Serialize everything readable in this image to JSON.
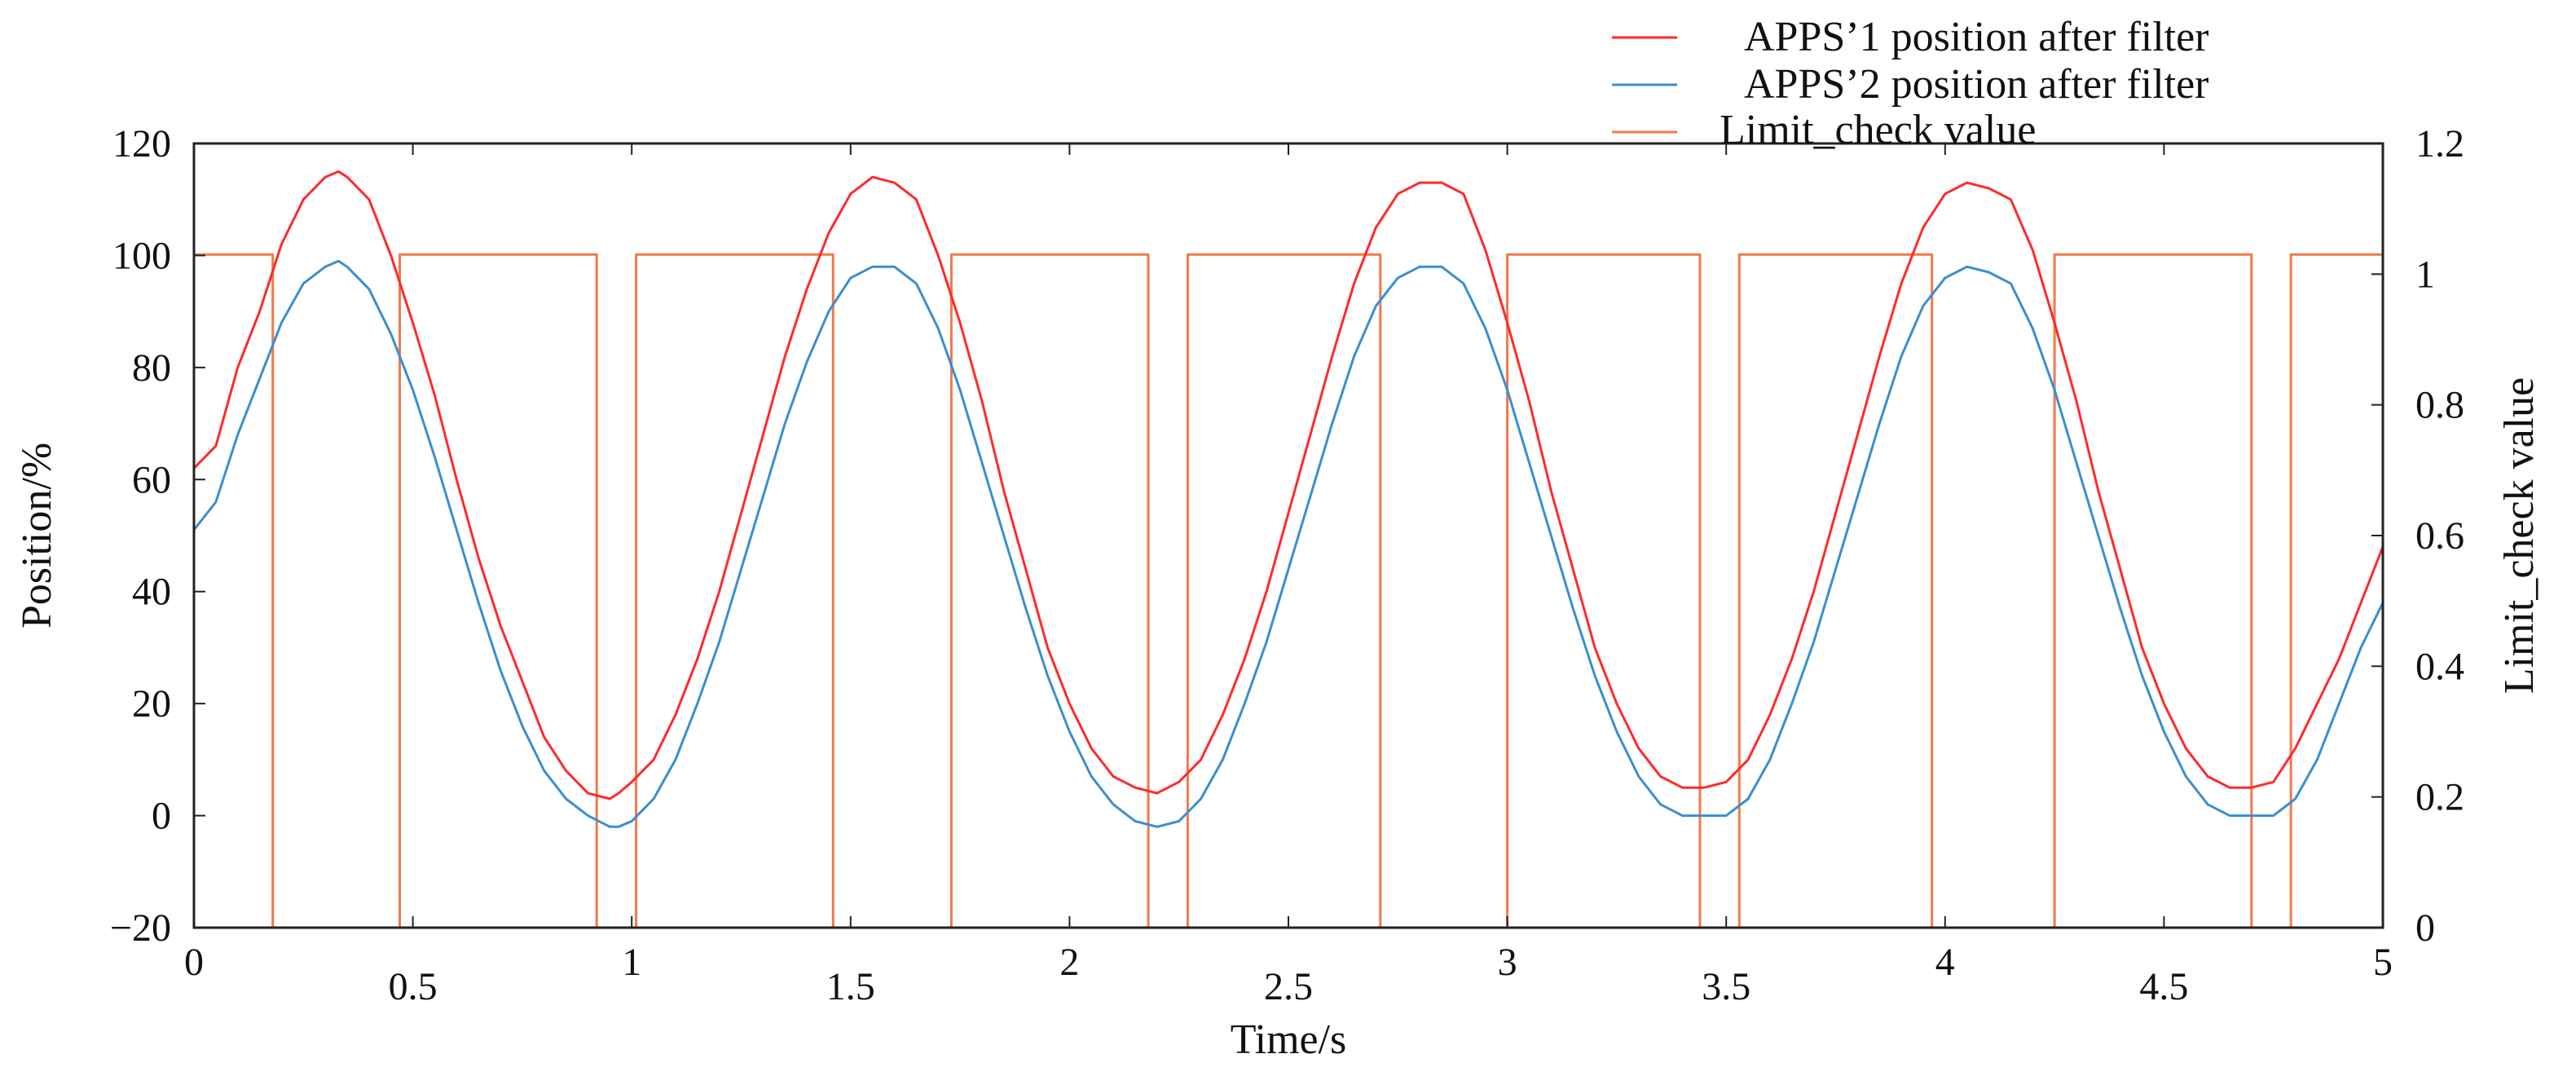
{
  "chart_data": {
    "type": "line",
    "xlabel": "Time/s",
    "ylabel_left": "Position/%",
    "ylabel_right": "Limit_check value",
    "xlim": [
      0,
      5
    ],
    "ylim_left": [
      -20,
      120
    ],
    "ylim_right": [
      0,
      1.2
    ],
    "x_ticks": [
      "0",
      "0.5",
      "1",
      "1.5",
      "2",
      "2.5",
      "3",
      "3.5",
      "4",
      "4.5",
      "5"
    ],
    "y_left_ticks": [
      "120",
      "100",
      "80",
      "60",
      "40",
      "20",
      "0",
      "−20"
    ],
    "y_right_ticks": [
      "1.2",
      "1",
      "0.8",
      "0.6",
      "0.4",
      "0.2",
      "0"
    ],
    "grid": false,
    "legend_position": "top-right",
    "series": [
      {
        "name": "APPS’1 position after filter",
        "axis": "left",
        "color": "#ff2a2a",
        "x": [
          0,
          0.05,
          0.1,
          0.15,
          0.2,
          0.25,
          0.3,
          0.33,
          0.35,
          0.4,
          0.45,
          0.5,
          0.55,
          0.6,
          0.65,
          0.7,
          0.75,
          0.8,
          0.85,
          0.9,
          0.95,
          0.97,
          1.0,
          1.05,
          1.1,
          1.15,
          1.2,
          1.25,
          1.3,
          1.35,
          1.4,
          1.45,
          1.5,
          1.55,
          1.6,
          1.65,
          1.7,
          1.75,
          1.8,
          1.85,
          1.9,
          1.95,
          2.0,
          2.05,
          2.1,
          2.15,
          2.2,
          2.25,
          2.3,
          2.35,
          2.4,
          2.45,
          2.5,
          2.55,
          2.6,
          2.65,
          2.7,
          2.75,
          2.8,
          2.85,
          2.9,
          2.95,
          3.0,
          3.05,
          3.1,
          3.15,
          3.2,
          3.25,
          3.3,
          3.35,
          3.4,
          3.45,
          3.5,
          3.55,
          3.6,
          3.65,
          3.7,
          3.75,
          3.8,
          3.85,
          3.9,
          3.95,
          4.0,
          4.05,
          4.1,
          4.15,
          4.2,
          4.25,
          4.3,
          4.35,
          4.4,
          4.45,
          4.5,
          4.55,
          4.6,
          4.65,
          4.7,
          4.75,
          4.8,
          4.85,
          4.9,
          4.95,
          5.0
        ],
        "values": [
          62,
          66,
          80,
          90,
          102,
          110,
          114,
          115,
          114,
          110,
          100,
          88,
          75,
          60,
          46,
          34,
          24,
          14,
          8,
          4,
          3,
          4,
          6,
          10,
          18,
          28,
          40,
          54,
          68,
          82,
          94,
          104,
          111,
          114,
          113,
          110,
          100,
          88,
          74,
          58,
          44,
          30,
          20,
          12,
          7,
          5,
          4,
          6,
          10,
          18,
          28,
          40,
          54,
          68,
          82,
          95,
          105,
          111,
          113,
          113,
          111,
          101,
          88,
          74,
          58,
          44,
          30,
          20,
          12,
          7,
          5,
          5,
          6,
          10,
          18,
          28,
          40,
          54,
          68,
          82,
          95,
          105,
          111,
          113,
          112,
          110,
          101,
          88,
          74,
          58,
          44,
          30,
          20,
          12,
          7,
          5,
          5,
          6,
          12,
          20,
          28,
          38,
          48
        ]
      },
      {
        "name": "APPS’2 position after filter",
        "axis": "left",
        "color": "#3a8fd0",
        "x": [
          0,
          0.05,
          0.1,
          0.15,
          0.2,
          0.25,
          0.3,
          0.33,
          0.35,
          0.4,
          0.45,
          0.5,
          0.55,
          0.6,
          0.65,
          0.7,
          0.75,
          0.8,
          0.85,
          0.9,
          0.95,
          0.97,
          1.0,
          1.05,
          1.1,
          1.15,
          1.2,
          1.25,
          1.3,
          1.35,
          1.4,
          1.45,
          1.5,
          1.55,
          1.6,
          1.65,
          1.7,
          1.75,
          1.8,
          1.85,
          1.9,
          1.95,
          2.0,
          2.05,
          2.1,
          2.15,
          2.2,
          2.25,
          2.3,
          2.35,
          2.4,
          2.45,
          2.5,
          2.55,
          2.6,
          2.65,
          2.7,
          2.75,
          2.8,
          2.85,
          2.9,
          2.95,
          3.0,
          3.05,
          3.1,
          3.15,
          3.2,
          3.25,
          3.3,
          3.35,
          3.4,
          3.45,
          3.5,
          3.55,
          3.6,
          3.65,
          3.7,
          3.75,
          3.8,
          3.85,
          3.9,
          3.95,
          4.0,
          4.05,
          4.1,
          4.15,
          4.2,
          4.25,
          4.3,
          4.35,
          4.4,
          4.45,
          4.5,
          4.55,
          4.6,
          4.65,
          4.7,
          4.75,
          4.8,
          4.85,
          4.9,
          4.95,
          5.0
        ],
        "values": [
          51,
          56,
          68,
          78,
          88,
          95,
          98,
          99,
          98,
          94,
          86,
          76,
          64,
          51,
          38,
          26,
          16,
          8,
          3,
          0,
          -2,
          -2,
          -1,
          3,
          10,
          20,
          31,
          44,
          57,
          70,
          81,
          90,
          96,
          98,
          98,
          95,
          87,
          76,
          63,
          50,
          37,
          25,
          15,
          7,
          2,
          -1,
          -2,
          -1,
          3,
          10,
          20,
          31,
          44,
          57,
          70,
          82,
          91,
          96,
          98,
          98,
          95,
          87,
          76,
          63,
          50,
          37,
          25,
          15,
          7,
          2,
          0,
          0,
          0,
          3,
          10,
          20,
          31,
          44,
          57,
          70,
          82,
          91,
          96,
          98,
          97,
          95,
          87,
          76,
          63,
          50,
          37,
          25,
          15,
          7,
          2,
          0,
          0,
          0,
          3,
          10,
          20,
          30,
          38
        ]
      },
      {
        "name": "Limit_check value",
        "axis": "right",
        "color": "#f07a4a",
        "step": true,
        "x": [
          0,
          0.18,
          0.18,
          0.47,
          0.47,
          0.92,
          0.92,
          1.01,
          1.01,
          1.46,
          1.46,
          1.73,
          1.73,
          2.18,
          2.18,
          2.27,
          2.27,
          2.71,
          2.71,
          3.0,
          3.0,
          3.44,
          3.44,
          3.53,
          3.53,
          3.97,
          3.97,
          4.25,
          4.25,
          4.7,
          4.7,
          4.79,
          4.79,
          5.0
        ],
        "values": [
          1.03,
          1.03,
          0,
          0,
          1.03,
          1.03,
          0,
          0,
          1.03,
          1.03,
          0,
          0,
          1.03,
          1.03,
          0,
          0,
          1.03,
          1.03,
          0,
          0,
          1.03,
          1.03,
          0,
          0,
          1.03,
          1.03,
          0,
          0,
          1.03,
          1.03,
          0,
          0,
          1.03,
          1.03
        ]
      }
    ]
  }
}
